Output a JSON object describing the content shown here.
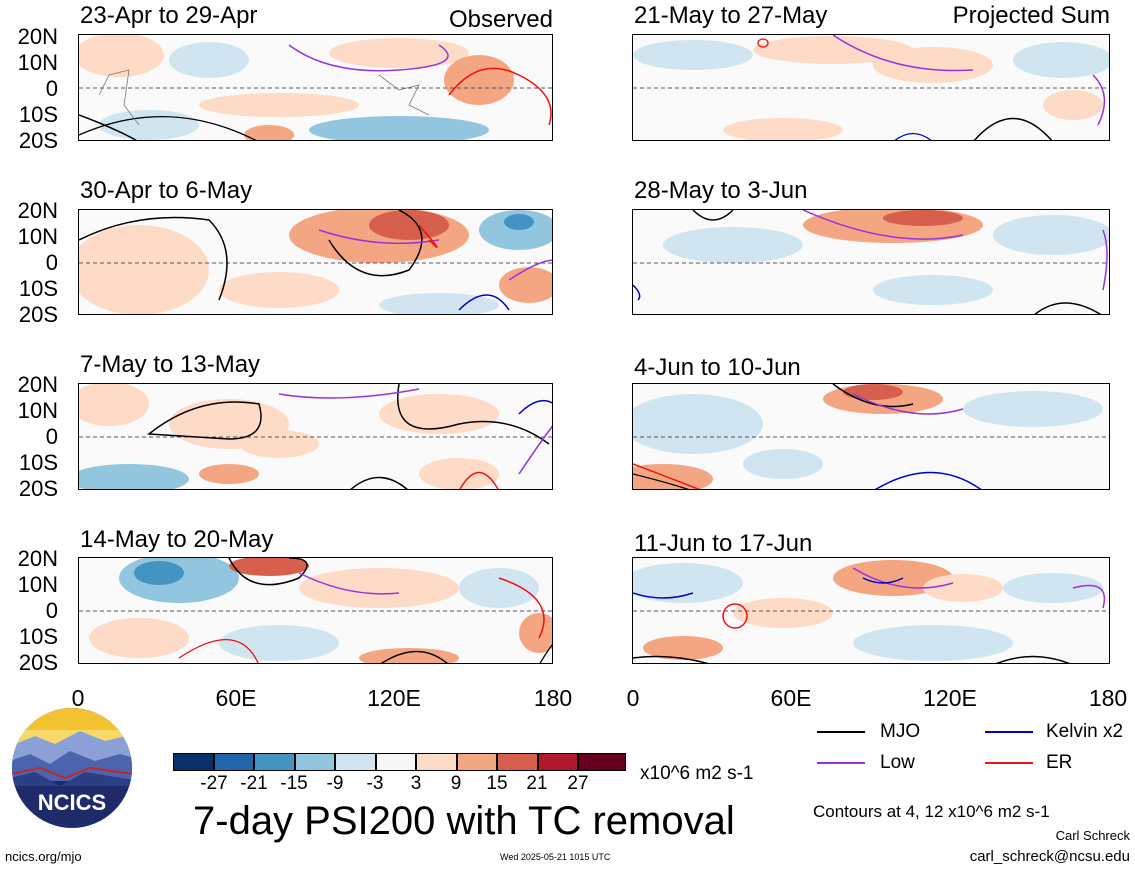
{
  "panels": {
    "left": [
      {
        "title": "23-Apr to 29-Apr",
        "corner": "Observed"
      },
      {
        "title": "30-Apr to 6-May",
        "corner": ""
      },
      {
        "title": "7-May to 13-May",
        "corner": ""
      },
      {
        "title": "14-May to 20-May",
        "corner": ""
      }
    ],
    "right": [
      {
        "title": "21-May to 27-May",
        "corner": "Projected Sum"
      },
      {
        "title": "28-May to 3-Jun",
        "corner": ""
      },
      {
        "title": "4-Jun to 10-Jun",
        "corner": ""
      },
      {
        "title": "11-Jun to 17-Jun",
        "corner": ""
      }
    ]
  },
  "lat_labels": [
    "20N",
    "10N",
    "0",
    "10S",
    "20S"
  ],
  "lon_labels": [
    "0",
    "60E",
    "120E",
    "180"
  ],
  "colorbar": {
    "colors": [
      "#08306b",
      "#2166ac",
      "#4393c3",
      "#92c5de",
      "#d1e5f0",
      "#f7f7f7",
      "#fddbc7",
      "#f4a582",
      "#d6604d",
      "#b2182b",
      "#67001f"
    ],
    "labels": [
      "-27",
      "-21",
      "-15",
      "-9",
      "-3",
      "3",
      "9",
      "15",
      "21",
      "27"
    ],
    "units": "x10^6 m2 s-1"
  },
  "legend": [
    {
      "label": "MJO",
      "color": "#000000"
    },
    {
      "label": "Kelvin x2",
      "color": "#0000cc"
    },
    {
      "label": "Low",
      "color": "#9933dd"
    },
    {
      "label": "ER",
      "color": "#ee1111"
    }
  ],
  "main_title": "7-day PSI200 with TC removal",
  "contours_note": "Contours at 4, 12 x10^6 m2 s-1",
  "author": "Carl Schreck",
  "email": "carl_schreck@ncsu.edu",
  "website": "ncics.org/mjo",
  "timestamp": "Wed 2025-05-21 1015 UTC",
  "logo_text": "NCICS"
}
